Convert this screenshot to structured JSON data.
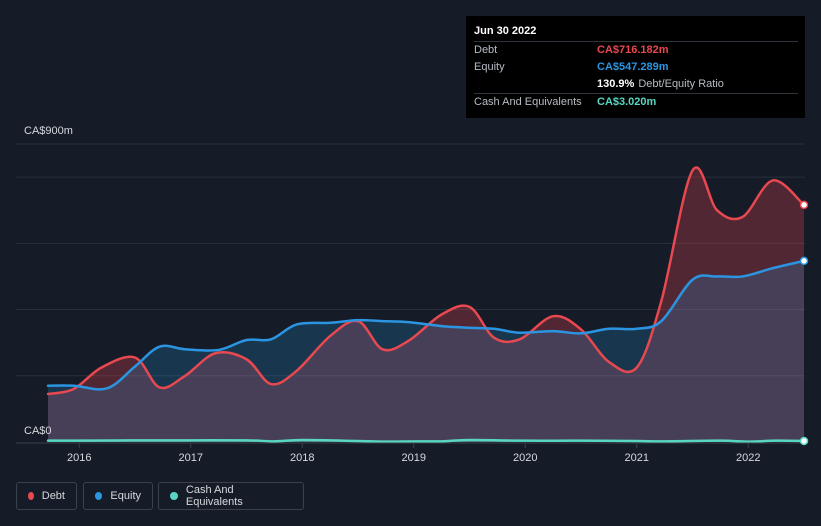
{
  "tooltip": {
    "date": "Jun 30 2022",
    "rows": [
      {
        "label": "Debt",
        "value": "CA$716.182m",
        "color": "#e8484f"
      },
      {
        "label": "Equity",
        "value": "CA$547.289m",
        "color": "#2b95e1"
      },
      {
        "label": "",
        "value": "130.9%",
        "sub": "Debt/Equity Ratio",
        "color": "#ffffff"
      },
      {
        "label": "Cash And Equivalents",
        "value": "CA$3.020m",
        "color": "#58d6c2"
      }
    ]
  },
  "legend": [
    {
      "label": "Debt",
      "color": "#e8484f"
    },
    {
      "label": "Equity",
      "color": "#2b95e1"
    },
    {
      "label": "Cash And Equivalents",
      "color": "#58d6c2"
    }
  ],
  "chart_data": {
    "type": "area",
    "ylabel_top": "CA$900m",
    "ylabel_bottom": "CA$0",
    "ylim": [
      0,
      900
    ],
    "xlim": [
      2015.72,
      2022.5
    ],
    "xticks": [
      "2016",
      "2017",
      "2018",
      "2019",
      "2020",
      "2021",
      "2022"
    ],
    "grid": true,
    "series": [
      {
        "name": "Debt",
        "color": "#e8484f",
        "x": [
          2015.72,
          2015.95,
          2016.2,
          2016.5,
          2016.72,
          2016.95,
          2017.22,
          2017.5,
          2017.72,
          2017.95,
          2018.25,
          2018.5,
          2018.72,
          2018.95,
          2019.25,
          2019.5,
          2019.72,
          2019.95,
          2020.25,
          2020.5,
          2020.75,
          2021.0,
          2021.22,
          2021.5,
          2021.72,
          2021.95,
          2022.22,
          2022.5
        ],
        "y": [
          145,
          160,
          225,
          255,
          165,
          200,
          268,
          250,
          175,
          215,
          320,
          365,
          280,
          305,
          385,
          408,
          315,
          310,
          380,
          340,
          242,
          225,
          425,
          820,
          700,
          680,
          790,
          716
        ]
      },
      {
        "name": "Equity",
        "color": "#2b95e1",
        "x": [
          2015.72,
          2015.95,
          2016.25,
          2016.5,
          2016.72,
          2016.95,
          2017.25,
          2017.5,
          2017.72,
          2017.95,
          2018.25,
          2018.5,
          2018.72,
          2018.95,
          2019.25,
          2019.5,
          2019.72,
          2019.95,
          2020.25,
          2020.5,
          2020.75,
          2021.0,
          2021.22,
          2021.5,
          2021.72,
          2021.95,
          2022.22,
          2022.5
        ],
        "y": [
          170,
          170,
          162,
          228,
          288,
          280,
          278,
          308,
          310,
          355,
          360,
          368,
          365,
          362,
          350,
          345,
          342,
          330,
          335,
          328,
          342,
          342,
          365,
          490,
          500,
          500,
          525,
          547
        ]
      },
      {
        "name": "Cash And Equivalents",
        "color": "#58d6c2",
        "x": [
          2015.72,
          2016.0,
          2016.5,
          2017.0,
          2017.5,
          2017.75,
          2018.0,
          2018.5,
          2018.75,
          2019.0,
          2019.25,
          2019.5,
          2020.0,
          2020.5,
          2021.0,
          2021.25,
          2021.75,
          2022.0,
          2022.25,
          2022.5
        ],
        "y": [
          4,
          4,
          5,
          5,
          5,
          2,
          6,
          3,
          1,
          2,
          2,
          6,
          4,
          4,
          3,
          2,
          4,
          1,
          4,
          3
        ]
      }
    ]
  }
}
